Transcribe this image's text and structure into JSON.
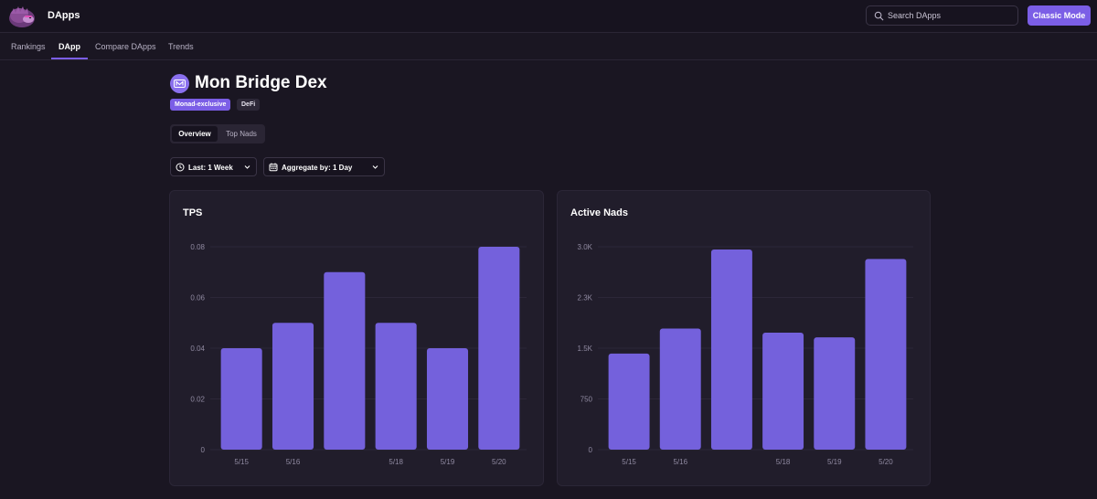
{
  "header": {
    "app_title": "DApps",
    "search_placeholder": "Search DApps",
    "classic_mode_label": "Classic Mode"
  },
  "nav": {
    "items": [
      "Rankings",
      "DApp",
      "Compare DApps",
      "Trends"
    ],
    "active": "DApp"
  },
  "dapp": {
    "name": "Mon Bridge Dex",
    "tags": [
      "Monad-exclusive",
      "DeFi"
    ]
  },
  "tabs": {
    "items": [
      "Overview",
      "Top Nads"
    ],
    "active": "Overview"
  },
  "filters": {
    "range_label": "Last: 1 Week",
    "aggregate_label": "Aggregate by: 1 Day"
  },
  "colors": {
    "accent": "#7b5ee6",
    "bar": "#7461dc",
    "background": "#1a1622",
    "card": "#211d2b"
  },
  "chart_data": [
    {
      "type": "bar",
      "title": "TPS",
      "categories": [
        "5/15",
        "5/16",
        "",
        "5/18",
        "5/19",
        "5/20"
      ],
      "values": [
        0.04,
        0.05,
        0.07,
        0.05,
        0.04,
        0.08
      ],
      "yticks": [
        "0",
        "0.02",
        "0.04",
        "0.06",
        "0.08"
      ],
      "ytick_values": [
        0,
        0.02,
        0.04,
        0.06,
        0.08
      ],
      "ylim": [
        0,
        0.08
      ],
      "grid": true
    },
    {
      "type": "bar",
      "title": "Active Nads",
      "categories": [
        "5/15",
        "5/16",
        "",
        "5/18",
        "5/19",
        "5/20"
      ],
      "values": [
        1420,
        1790,
        2960,
        1730,
        1660,
        2820
      ],
      "yticks": [
        "0",
        "750",
        "1.5K",
        "2.3K",
        "3.0K"
      ],
      "ytick_values": [
        0,
        750,
        1500,
        2250,
        3000
      ],
      "ylim": [
        0,
        3000
      ],
      "grid": true
    }
  ]
}
